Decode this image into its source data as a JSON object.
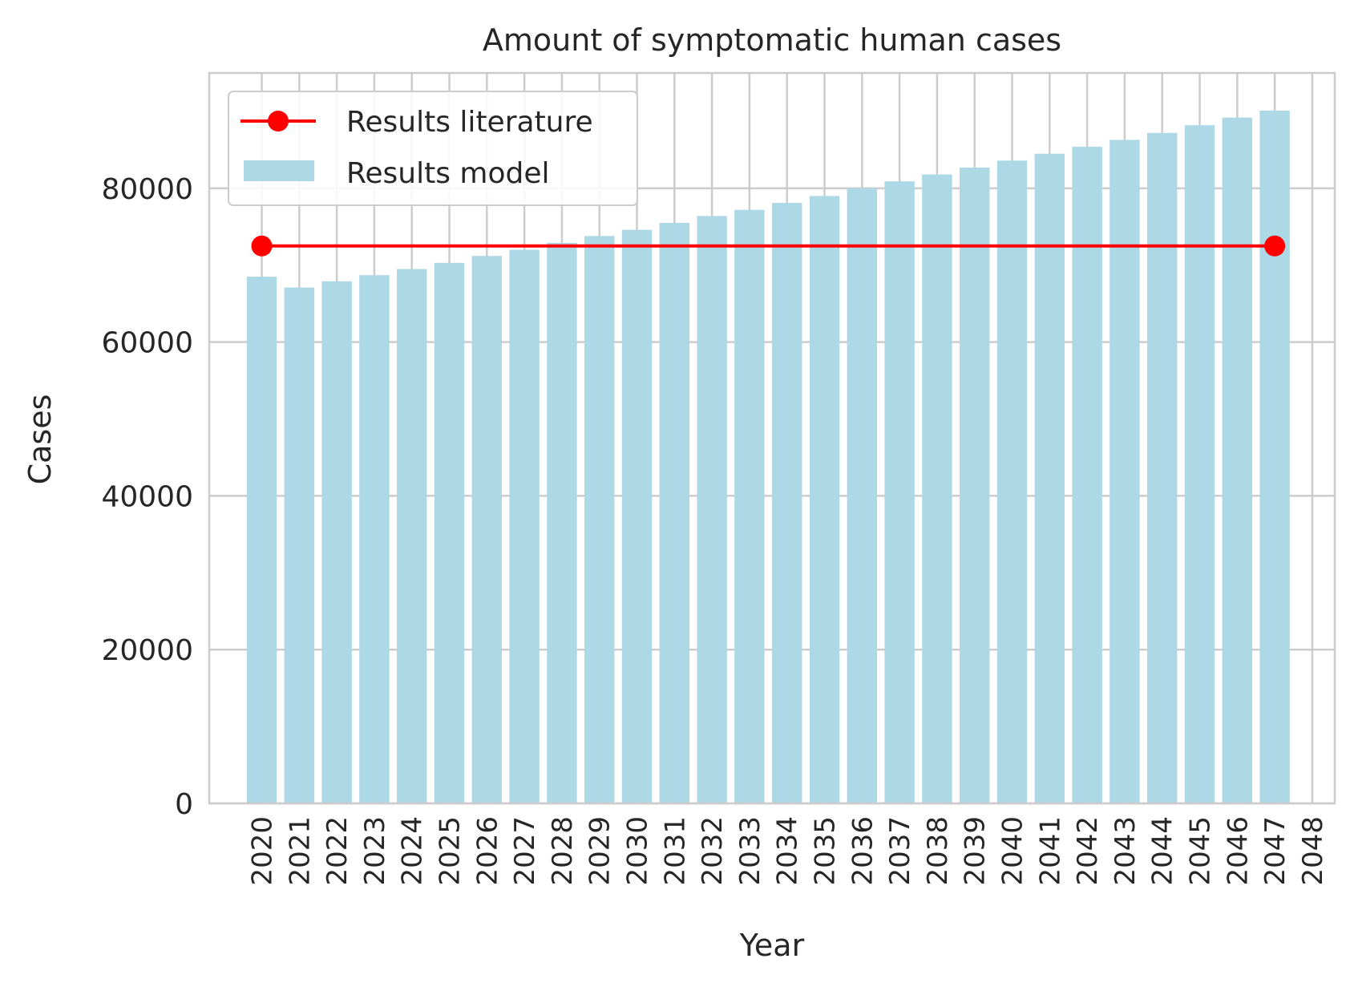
{
  "chart_data": {
    "type": "bar",
    "title": "Amount of symptomatic human cases",
    "xlabel": "Year",
    "ylabel": "Cases",
    "x": [
      2020,
      2021,
      2022,
      2023,
      2024,
      2025,
      2026,
      2027,
      2028,
      2029,
      2030,
      2031,
      2032,
      2033,
      2034,
      2035,
      2036,
      2037,
      2038,
      2039,
      2040,
      2041,
      2042,
      2043,
      2044,
      2045,
      2046,
      2047
    ],
    "x_ticks": [
      2020,
      2021,
      2022,
      2023,
      2024,
      2025,
      2026,
      2027,
      2028,
      2029,
      2030,
      2031,
      2032,
      2033,
      2034,
      2035,
      2036,
      2037,
      2038,
      2039,
      2040,
      2041,
      2042,
      2043,
      2044,
      2045,
      2046,
      2047,
      2048
    ],
    "xlim": [
      2018.6,
      2048.6
    ],
    "ylim": [
      0,
      95000
    ],
    "y_ticks": [
      0,
      20000,
      40000,
      60000,
      80000
    ],
    "grid": true,
    "legend_position": "top-left",
    "series": [
      {
        "name": "Results model",
        "type": "bar",
        "color": "#add8e6",
        "values": [
          68500,
          67100,
          67900,
          68700,
          69500,
          70300,
          71200,
          72000,
          72900,
          73800,
          74600,
          75500,
          76400,
          77200,
          78100,
          79000,
          80000,
          80900,
          81800,
          82700,
          83600,
          84500,
          85400,
          86300,
          87200,
          88200,
          89200,
          90100
        ]
      },
      {
        "name": "Results literature",
        "type": "line",
        "color": "#ff0000",
        "x": [
          2020,
          2047
        ],
        "values": [
          72500,
          72500
        ]
      }
    ]
  }
}
